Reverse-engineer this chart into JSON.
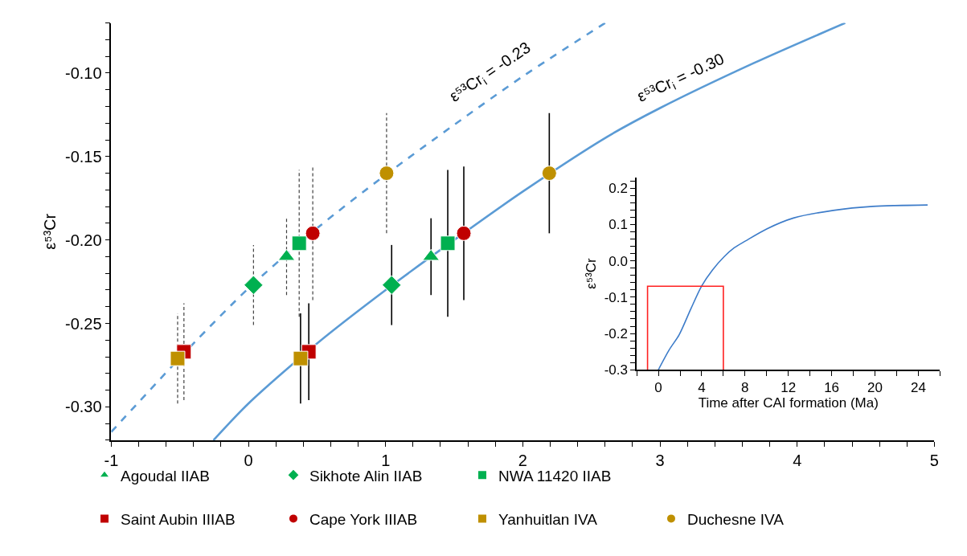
{
  "chart_data": [
    {
      "type": "scatter",
      "ylabel": "ε⁵³Cr",
      "xlim": [
        -1,
        5
      ],
      "ylim": [
        -0.32,
        -0.07
      ],
      "legend": "bottom",
      "xticks": [
        -1,
        {
          "value": -0.8,
          "label": null
        },
        {
          "value": -0.6,
          "label": null
        },
        {
          "value": -0.4,
          "label": null
        },
        {
          "value": -0.2,
          "label": null
        },
        0,
        {
          "value": 0.2,
          "label": null
        },
        {
          "value": 0.4,
          "label": null
        },
        {
          "value": 0.6,
          "label": null
        },
        {
          "value": 0.8,
          "label": null
        },
        1,
        {
          "value": 1.2,
          "label": null
        },
        {
          "value": 1.4,
          "label": null
        },
        {
          "value": 1.6,
          "label": null
        },
        {
          "value": 1.8,
          "label": null
        },
        2,
        {
          "value": 2.2,
          "label": null
        },
        {
          "value": 2.4,
          "label": null
        },
        {
          "value": 2.6,
          "label": null
        },
        {
          "value": 2.8,
          "label": null
        },
        3,
        {
          "value": 3.2,
          "label": null
        },
        {
          "value": 3.4,
          "label": null
        },
        {
          "value": 3.6,
          "label": null
        },
        {
          "value": 3.8,
          "label": null
        },
        4,
        {
          "value": 4.2,
          "label": null
        },
        {
          "value": 4.4,
          "label": null
        },
        {
          "value": 4.6,
          "label": null
        },
        {
          "value": 4.8,
          "label": null
        },
        5
      ],
      "yticks": [
        {
          "value": -0.32,
          "label": null
        },
        {
          "value": -0.31,
          "label": null
        },
        {
          "value": -0.3,
          "label": "-0.30"
        },
        {
          "value": -0.29,
          "label": null
        },
        {
          "value": -0.28,
          "label": null
        },
        {
          "value": -0.27,
          "label": null
        },
        {
          "value": -0.26,
          "label": null
        },
        {
          "value": -0.25,
          "label": "-0.25"
        },
        {
          "value": -0.24,
          "label": null
        },
        {
          "value": -0.23,
          "label": null
        },
        {
          "value": -0.22,
          "label": null
        },
        {
          "value": -0.21,
          "label": null
        },
        {
          "value": -0.2,
          "label": "-0.20"
        },
        {
          "value": -0.19,
          "label": null
        },
        {
          "value": -0.18,
          "label": null
        },
        {
          "value": -0.17,
          "label": null
        },
        {
          "value": -0.16,
          "label": null
        },
        {
          "value": -0.15,
          "label": "-0.15"
        },
        {
          "value": -0.14,
          "label": null
        },
        {
          "value": -0.13,
          "label": null
        },
        {
          "value": -0.12,
          "label": null
        },
        {
          "value": -0.11,
          "label": null
        },
        {
          "value": -0.1,
          "label": "-0.10"
        },
        {
          "value": -0.09,
          "label": null
        },
        {
          "value": -0.08,
          "label": null
        },
        {
          "value": -0.07,
          "label": null
        }
      ],
      "annotations": [
        "ε⁵³Cr$_{i}$ = -0.23",
        "ε⁵³Cr$_{i}$ = -0.30"
      ],
      "series": [
        {
          "type": "line",
          "color": "#5b9bd5",
          "line_style": "dashed",
          "marker": "none",
          "x": [
            -1,
            -0.4,
            0,
            0.5,
            1,
            1.5,
            2,
            2.6
          ],
          "values": [
            -0.315,
            -0.262,
            -0.229,
            -0.193,
            -0.161,
            -0.131,
            -0.102,
            -0.07
          ]
        },
        {
          "type": "line",
          "color": "#5b9bd5",
          "line_style": "solid",
          "marker": "none",
          "x": [
            -0.255,
            0,
            0.5,
            1,
            1.5,
            2,
            2.619,
            3,
            3.685,
            4.35
          ],
          "values": [
            -0.32,
            -0.298,
            -0.262,
            -0.23,
            -0.2,
            -0.171,
            -0.138,
            -0.121,
            -0.094,
            -0.07
          ]
        },
        {
          "name": "Agoudal IIAB",
          "color": "#00b050",
          "marker": "triangle",
          "line_style": "solid",
          "x": [
            1.331
          ],
          "values": [
            -0.21
          ],
          "errors": [
            0.023
          ]
        },
        {
          "name": "Sikhote Alin IIAB",
          "color": "#00b050",
          "marker": "diamond",
          "line_style": "solid",
          "x": [
            1.044
          ],
          "values": [
            -0.227
          ],
          "errors": [
            0.024
          ]
        },
        {
          "name": "NWA 11420 IIAB",
          "color": "#00b050",
          "marker": "square",
          "line_style": "solid",
          "x": [
            1.453
          ],
          "values": [
            -0.202
          ],
          "errors": [
            0.044
          ]
        },
        {
          "name": "Saint Aubin IIIAB",
          "color": "#c00000",
          "marker": "square",
          "line_style": "solid",
          "x": [
            0.44
          ],
          "values": [
            -0.267
          ],
          "errors": [
            0.029
          ]
        },
        {
          "name": "Cape York IIIAB",
          "color": "#c00000",
          "marker": "circle",
          "line_style": "solid",
          "x": [
            1.57
          ],
          "values": [
            -0.196
          ],
          "errors": [
            0.04
          ]
        },
        {
          "name": "Yanhuitlan IVA",
          "color": "#bf9000",
          "marker": "square",
          "line_style": "solid",
          "x": [
            0.38
          ],
          "values": [
            -0.271
          ],
          "errors": [
            0.027
          ]
        },
        {
          "name": "Duchesne IVA",
          "color": "#bf9000",
          "marker": "circle",
          "line_style": "solid",
          "x": [
            2.193
          ],
          "values": [
            -0.16
          ],
          "errors": [
            0.036
          ]
        },
        {
          "color": "#00b050",
          "marker": "triangle",
          "line_style": "dashed",
          "x": [
            0.278
          ],
          "values": [
            -0.21
          ],
          "errors": [
            0.023
          ]
        },
        {
          "color": "#00b050",
          "marker": "diamond",
          "line_style": "dashed",
          "x": [
            0.037
          ],
          "values": [
            -0.227
          ],
          "errors": [
            0.024
          ]
        },
        {
          "color": "#00b050",
          "marker": "square",
          "line_style": "dashed",
          "x": [
            0.37
          ],
          "values": [
            -0.202
          ],
          "errors": [
            0.044
          ]
        },
        {
          "color": "#c00000",
          "marker": "square",
          "line_style": "dashed",
          "x": [
            -0.47
          ],
          "values": [
            -0.267
          ],
          "errors": [
            0.029
          ]
        },
        {
          "color": "#c00000",
          "marker": "circle",
          "line_style": "dashed",
          "x": [
            0.469
          ],
          "values": [
            -0.196
          ],
          "errors": [
            0.04
          ]
        },
        {
          "color": "#bf9000",
          "marker": "square",
          "line_style": "dashed",
          "x": [
            -0.516
          ],
          "values": [
            -0.271
          ],
          "errors": [
            0.027
          ]
        },
        {
          "color": "#bf9000",
          "marker": "circle",
          "line_style": "dashed",
          "x": [
            1.007
          ],
          "values": [
            -0.16
          ],
          "errors": [
            0.036
          ]
        }
      ]
    },
    {
      "type": "line",
      "xlabel": "Time after CAI formation (Ma)",
      "ylabel": "ε⁵³Cr",
      "xlim": [
        -2,
        26
      ],
      "ylim": [
        -0.3,
        0.23
      ],
      "xticks": [
        {
          "value": -2,
          "label": null
        },
        0,
        {
          "value": 2,
          "label": null
        },
        4,
        {
          "value": 6,
          "label": null
        },
        8,
        {
          "value": 10,
          "label": null
        },
        12,
        {
          "value": 14,
          "label": null
        },
        16,
        {
          "value": 18,
          "label": null
        },
        20,
        {
          "value": 22,
          "label": null
        },
        24,
        {
          "value": 26,
          "label": null
        }
      ],
      "yticks": [
        {
          "value": -0.3,
          "label": "-0.3"
        },
        {
          "value": -0.28,
          "label": null
        },
        {
          "value": -0.26,
          "label": null
        },
        {
          "value": -0.24,
          "label": null
        },
        {
          "value": -0.22,
          "label": null
        },
        {
          "value": -0.2,
          "label": "-0.2"
        },
        {
          "value": -0.18,
          "label": null
        },
        {
          "value": -0.16,
          "label": null
        },
        {
          "value": -0.14,
          "label": null
        },
        {
          "value": -0.12,
          "label": null
        },
        {
          "value": -0.1,
          "label": "-0.1"
        },
        {
          "value": -0.08,
          "label": null
        },
        {
          "value": -0.06,
          "label": null
        },
        {
          "value": -0.04,
          "label": null
        },
        {
          "value": -0.02,
          "label": null
        },
        {
          "value": 0,
          "label": "0.0"
        },
        {
          "value": 0.02,
          "label": null
        },
        {
          "value": 0.04,
          "label": null
        },
        {
          "value": 0.06,
          "label": null
        },
        {
          "value": 0.08,
          "label": null
        },
        {
          "value": 0.1,
          "label": "0.1"
        },
        {
          "value": 0.12,
          "label": null
        },
        {
          "value": 0.14,
          "label": null
        },
        {
          "value": 0.16,
          "label": null
        },
        {
          "value": 0.18,
          "label": null
        },
        {
          "value": 0.2,
          "label": "0.2"
        },
        {
          "value": 0.22,
          "label": null
        }
      ],
      "series": [
        {
          "color": "#3d7cc9",
          "line_style": "solid",
          "marker": "none",
          "x": [
            0,
            1,
            1.91,
            3,
            4.0,
            5,
            6.09,
            7,
            8.05,
            10.0,
            12.47,
            16.15,
            19.8,
            24.86
          ],
          "values": [
            -0.3,
            -0.245,
            -0.204,
            -0.132,
            -0.069,
            -0.025,
            0.012,
            0.036,
            0.055,
            0.088,
            0.118,
            0.139,
            0.15,
            0.154
          ]
        },
        {
          "color": "#ff2020",
          "line_style": "solid",
          "marker": "none",
          "x": [
            -1,
            -1,
            6,
            6
          ],
          "values": [
            -0.3,
            -0.07,
            -0.07,
            -0.3
          ]
        }
      ]
    }
  ]
}
